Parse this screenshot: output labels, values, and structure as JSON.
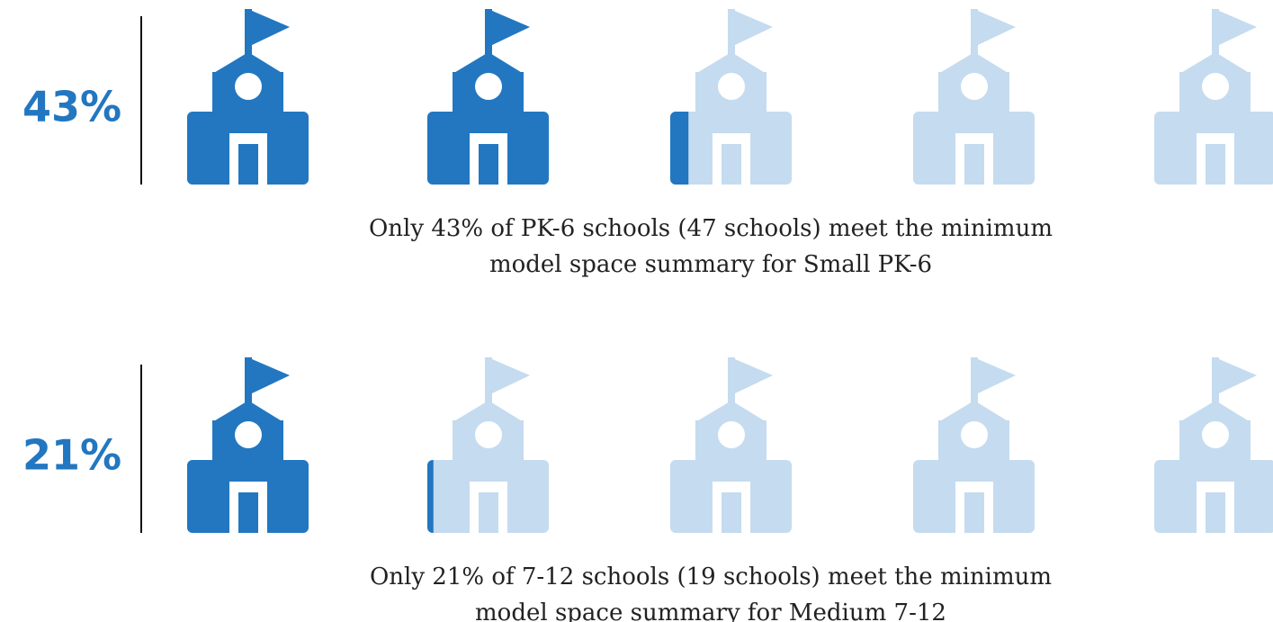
{
  "chart_data": [
    {
      "type": "pictograph",
      "values": [
        43
      ],
      "value_labels": [
        "43%"
      ],
      "xlim": [
        0,
        100
      ],
      "caption": [
        "Only 43% of PK-6 schools (47 schools) meet the minimum",
        "model space summary for Small PK-6"
      ],
      "color": "#2277c0",
      "empty_color": "#c5dbef"
    },
    {
      "type": "pictograph",
      "values": [
        21
      ],
      "value_labels": [
        "21%"
      ],
      "xlim": [
        0,
        100
      ],
      "caption": [
        "Only 21% of 7-12 schools (19 schools) meet the minimum",
        "model space summary for Medium 7-12"
      ],
      "color": "#2277c0",
      "empty_color": "#c5dbef"
    }
  ]
}
